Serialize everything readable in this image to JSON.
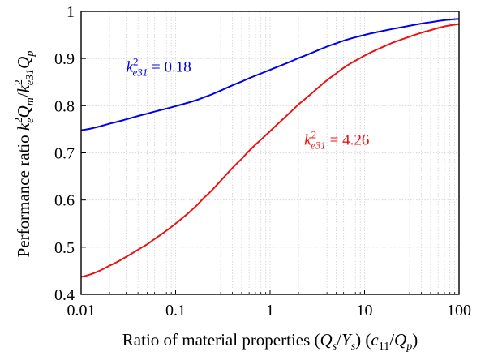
{
  "chart_data": {
    "type": "line",
    "xscale": "log",
    "xlim": [
      0.01,
      100
    ],
    "ylim": [
      0.4,
      1.0
    ],
    "xticks": [
      0.01,
      0.1,
      1,
      10,
      100
    ],
    "xtick_labels": [
      "0.01",
      "0.1",
      "1",
      "10",
      "100"
    ],
    "yticks": [
      0.4,
      0.5,
      0.6,
      0.7,
      0.8,
      0.9,
      1.0
    ],
    "ytick_labels": [
      "0.4",
      "0.5",
      "0.6",
      "0.7",
      "0.8",
      "0.9",
      "1"
    ],
    "grid": true,
    "xlabel": "Ratio of material properties (Q_s/Y_s) (c_11/Q_p)",
    "ylabel": "Performance ratio k_e^2 Q_m / k_e31^2 Q_p",
    "series": [
      {
        "annotation": "k_e31^2 = 0.18",
        "color": "#0000ee",
        "x": [
          0.01,
          0.02,
          0.05,
          0.1,
          0.2,
          0.5,
          1,
          2,
          5,
          10,
          20,
          50,
          100
        ],
        "y": [
          0.748,
          0.762,
          0.783,
          0.799,
          0.818,
          0.851,
          0.876,
          0.901,
          0.932,
          0.95,
          0.963,
          0.977,
          0.984
        ]
      },
      {
        "annotation": "k_e31^2 = 4.26",
        "color": "#ee1111",
        "x": [
          0.01,
          0.02,
          0.05,
          0.1,
          0.2,
          0.5,
          1,
          2,
          5,
          10,
          20,
          50,
          100
        ],
        "y": [
          0.437,
          0.461,
          0.506,
          0.55,
          0.605,
          0.687,
          0.746,
          0.803,
          0.868,
          0.906,
          0.934,
          0.96,
          0.973
        ]
      }
    ],
    "annotations": [
      {
        "series": 0,
        "text_main": "k",
        "text_sup": "2",
        "text_sub": "e31",
        "text_rest": " = 0.18",
        "x": 0.03,
        "y": 0.872
      },
      {
        "series": 1,
        "text_main": "k",
        "text_sup": "2",
        "text_sub": "e31",
        "text_rest": " = 4.26",
        "x": 2.3,
        "y": 0.717
      }
    ]
  }
}
